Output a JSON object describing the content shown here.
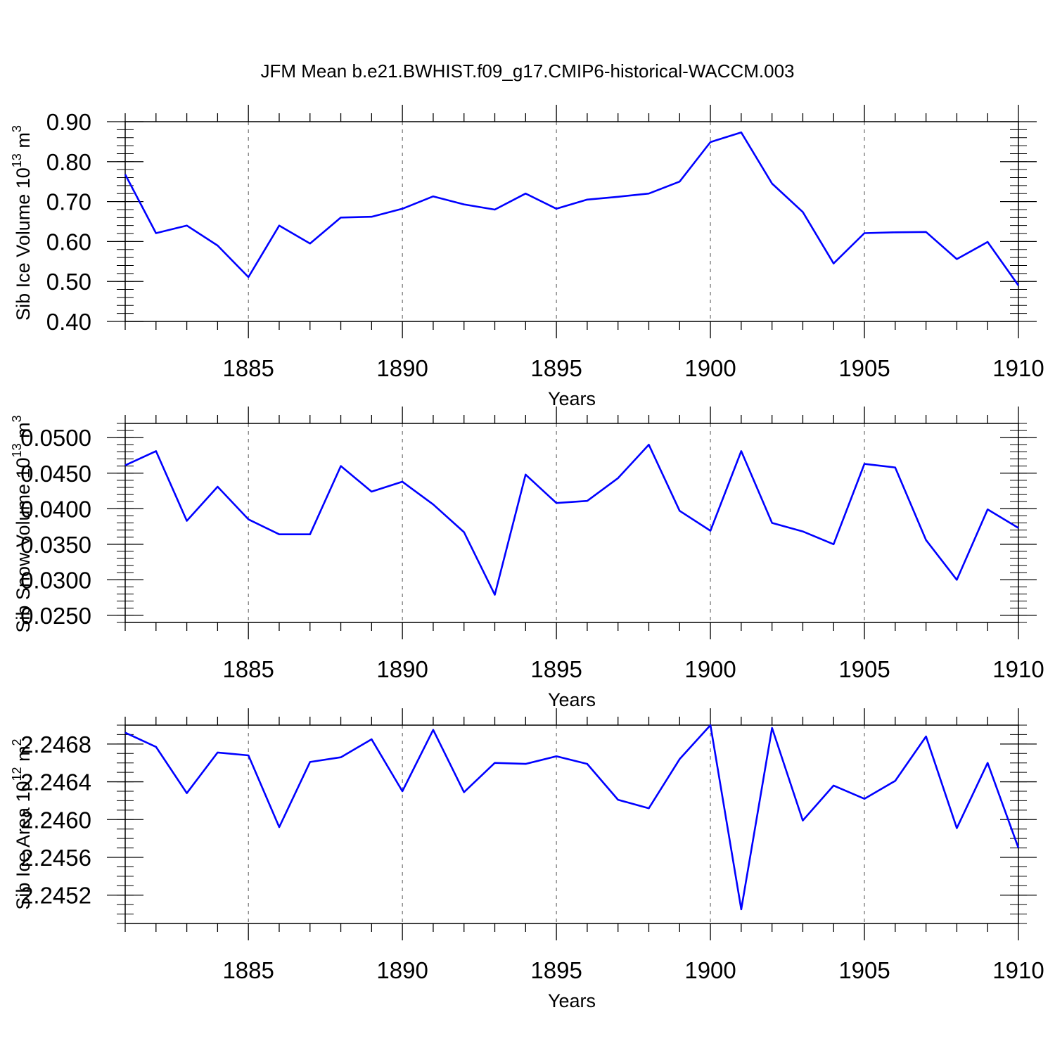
{
  "title": "JFM Mean b.e21.BWHIST.f09_g17.CMIP6-historical-WACCM.003",
  "colors": {
    "line": "#0000ff",
    "axis": "#000000",
    "grid": "#555555"
  },
  "chart_data": [
    {
      "type": "line",
      "ylabel_main": "Sib Ice Volume 10",
      "ylabel_exp": "13",
      "ylabel_unit": "m",
      "ylabel_unit_exp": "3",
      "xlabel": "Years",
      "xlim": [
        1881,
        1910
      ],
      "ylim": [
        0.4,
        0.9
      ],
      "x_ticks": [
        1885,
        1890,
        1895,
        1900,
        1905,
        1910
      ],
      "x_tick_labels": [
        "1885",
        "1890",
        "1895",
        "1900",
        "1905",
        "1910"
      ],
      "y_ticks": [
        0.4,
        0.5,
        0.6,
        0.7,
        0.8,
        0.9
      ],
      "y_tick_labels": [
        "0.40",
        "0.50",
        "0.60",
        "0.70",
        "0.80",
        "0.90"
      ],
      "y_minor_step": 0.02,
      "grid": "vertical dashed at major x ticks",
      "x": [
        1881,
        1882,
        1883,
        1884,
        1885,
        1886,
        1887,
        1888,
        1889,
        1890,
        1891,
        1892,
        1893,
        1894,
        1895,
        1896,
        1897,
        1898,
        1899,
        1900,
        1901,
        1902,
        1903,
        1904,
        1905,
        1906,
        1907,
        1908,
        1909,
        1910
      ],
      "series": [
        {
          "values": [
            0.768,
            0.621,
            0.64,
            0.59,
            0.511,
            0.64,
            0.595,
            0.66,
            0.662,
            0.682,
            0.713,
            0.693,
            0.68,
            0.72,
            0.682,
            0.705,
            0.712,
            0.72,
            0.75,
            0.849,
            0.873,
            0.745,
            0.674,
            0.545,
            0.621,
            0.623,
            0.624,
            0.556,
            0.599,
            0.49
          ]
        }
      ]
    },
    {
      "type": "line",
      "ylabel_main": "Sib Snow Volume 10",
      "ylabel_exp": "13",
      "ylabel_unit": "m",
      "ylabel_unit_exp": "3",
      "xlabel": "Years",
      "xlim": [
        1881,
        1910
      ],
      "ylim": [
        0.024,
        0.052
      ],
      "x_ticks": [
        1885,
        1890,
        1895,
        1900,
        1905,
        1910
      ],
      "x_tick_labels": [
        "1885",
        "1890",
        "1895",
        "1900",
        "1905",
        "1910"
      ],
      "y_ticks": [
        0.025,
        0.03,
        0.035,
        0.04,
        0.045,
        0.05
      ],
      "y_tick_labels": [
        "0.0250",
        "0.0300",
        "0.0350",
        "0.0400",
        "0.0450",
        "0.0500"
      ],
      "y_minor_step": 0.001,
      "grid": "vertical dashed at major x ticks",
      "x": [
        1881,
        1882,
        1883,
        1884,
        1885,
        1886,
        1887,
        1888,
        1889,
        1890,
        1891,
        1892,
        1893,
        1894,
        1895,
        1896,
        1897,
        1898,
        1899,
        1900,
        1901,
        1902,
        1903,
        1904,
        1905,
        1906,
        1907,
        1908,
        1909,
        1910
      ],
      "series": [
        {
          "values": [
            0.0461,
            0.0481,
            0.0383,
            0.0431,
            0.0385,
            0.0364,
            0.0364,
            0.046,
            0.0424,
            0.0438,
            0.0406,
            0.0367,
            0.0279,
            0.0448,
            0.0408,
            0.0411,
            0.0443,
            0.049,
            0.0397,
            0.0369,
            0.0481,
            0.038,
            0.0368,
            0.035,
            0.0463,
            0.0458,
            0.0356,
            0.03,
            0.0399,
            0.0373
          ]
        }
      ]
    },
    {
      "type": "line",
      "ylabel_main": "Sib Ice Area 10",
      "ylabel_exp": "12",
      "ylabel_unit": "m",
      "ylabel_unit_exp": "2",
      "xlabel": "Years",
      "xlim": [
        1881,
        1910
      ],
      "ylim": [
        2.2449,
        2.247
      ],
      "x_ticks": [
        1885,
        1890,
        1895,
        1900,
        1905,
        1910
      ],
      "x_tick_labels": [
        "1885",
        "1890",
        "1895",
        "1900",
        "1905",
        "1910"
      ],
      "y_ticks": [
        2.2452,
        2.2456,
        2.246,
        2.2464,
        2.2468
      ],
      "y_tick_labels": [
        "2.2452",
        "2.2456",
        "2.2460",
        "2.2464",
        "2.2468"
      ],
      "y_minor_step": 0.0001,
      "grid": "vertical dashed at major x ticks",
      "x": [
        1881,
        1882,
        1883,
        1884,
        1885,
        1886,
        1887,
        1888,
        1889,
        1890,
        1891,
        1892,
        1893,
        1894,
        1895,
        1896,
        1897,
        1898,
        1899,
        1900,
        1901,
        1902,
        1903,
        1904,
        1905,
        1906,
        1907,
        1908,
        1909,
        1910
      ],
      "series": [
        {
          "values": [
            2.24692,
            2.24677,
            2.24628,
            2.24671,
            2.24668,
            2.24592,
            2.24661,
            2.24666,
            2.24685,
            2.2463,
            2.24695,
            2.24629,
            2.2466,
            2.24659,
            2.24667,
            2.24659,
            2.24621,
            2.24612,
            2.24664,
            2.247,
            2.24505,
            2.24697,
            2.24599,
            2.24636,
            2.24622,
            2.24641,
            2.24688,
            2.24591,
            2.2466,
            2.2457
          ]
        }
      ]
    }
  ]
}
